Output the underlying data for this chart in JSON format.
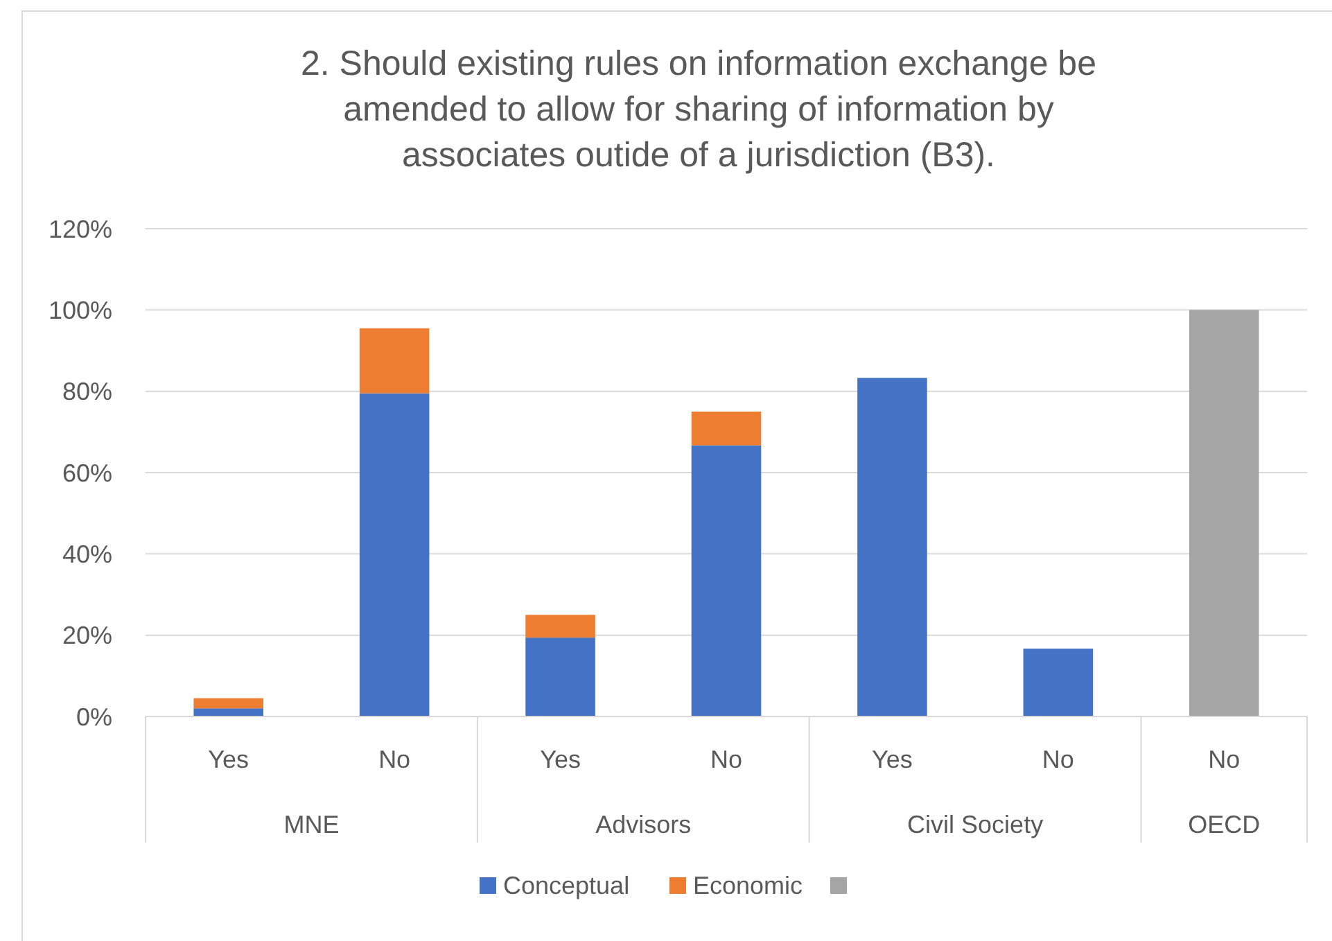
{
  "chart_data": {
    "type": "bar",
    "stacked": true,
    "title": "2. Should existing rules on information exchange be amended to allow for sharing of information by associates outide of a jurisdiction (B3).",
    "categories": [
      "Yes",
      "No",
      "Yes",
      "No",
      "Yes",
      "No",
      "No"
    ],
    "annotations": [
      "MNE",
      "Advisors",
      "Civil Society",
      "OECD"
    ],
    "series": [
      {
        "name": "Conceptual",
        "color": "#4472c4",
        "values": [
          2,
          79.5,
          19.4,
          66.7,
          83.3,
          16.7,
          null
        ]
      },
      {
        "name": "Economic",
        "color": "#ed7d31",
        "values": [
          2.5,
          16,
          5.6,
          8.3,
          null,
          null,
          null
        ]
      },
      {
        "color": "#a5a5a5",
        "values": [
          null,
          null,
          null,
          null,
          null,
          null,
          100
        ]
      }
    ],
    "ylim": [
      0,
      120
    ],
    "yticks": [
      {
        "value": 0,
        "label": "0%"
      },
      {
        "value": 20,
        "label": "20%"
      },
      {
        "value": 40,
        "label": "40%"
      },
      {
        "value": 60,
        "label": "60%"
      },
      {
        "value": 80,
        "label": "80%"
      },
      {
        "value": 100,
        "label": "100%"
      },
      {
        "value": 120,
        "label": "120%"
      }
    ],
    "grid": "y",
    "legend": "bottom"
  }
}
